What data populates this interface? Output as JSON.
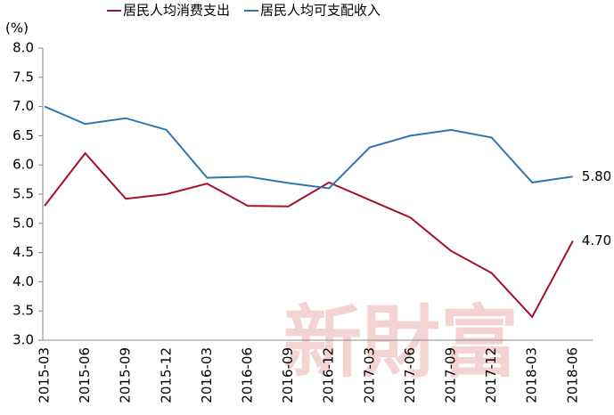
{
  "chart_data": {
    "type": "line",
    "unit_label": "(%)",
    "watermark": "新財富",
    "categories": [
      "2015-03",
      "2015-06",
      "2015-09",
      "2015-12",
      "2016-03",
      "2016-06",
      "2016-09",
      "2016-12",
      "2017-03",
      "2017-06",
      "2017-09",
      "2017-12",
      "2018-03",
      "2018-06"
    ],
    "series": [
      {
        "name": "居民人均消费支出",
        "color": "#a5112a",
        "values": [
          5.3,
          6.2,
          5.42,
          5.5,
          5.68,
          5.3,
          5.29,
          5.7,
          5.4,
          5.1,
          4.53,
          4.15,
          3.4,
          4.7
        ],
        "value_labels": [
          null,
          null,
          null,
          null,
          null,
          null,
          null,
          null,
          null,
          null,
          null,
          null,
          null,
          "4.70"
        ]
      },
      {
        "name": "居民人均可支配收入",
        "color": "#2e75b6",
        "values": [
          7.0,
          6.7,
          6.8,
          6.6,
          5.78,
          5.8,
          5.69,
          5.6,
          6.3,
          6.5,
          6.6,
          6.47,
          5.7,
          5.8
        ],
        "value_labels": [
          null,
          null,
          null,
          null,
          null,
          null,
          null,
          null,
          null,
          null,
          null,
          null,
          null,
          "5.80"
        ]
      }
    ],
    "ylim": [
      3.0,
      8.0
    ],
    "yticks": [
      {
        "value": 3.0,
        "label": "3.0"
      },
      {
        "value": 3.5,
        "label": "3.5"
      },
      {
        "value": 4.0,
        "label": "4.0"
      },
      {
        "value": 4.5,
        "label": "4.5"
      },
      {
        "value": 5.0,
        "label": "5.0"
      },
      {
        "value": 5.5,
        "label": "5.5"
      },
      {
        "value": 6.0,
        "label": "6.0"
      },
      {
        "value": 6.5,
        "label": "6.5"
      },
      {
        "value": 7.0,
        "label": "7.0"
      },
      {
        "value": 7.5,
        "label": "7.5"
      },
      {
        "value": 8.0,
        "label": "8.0"
      }
    ],
    "grid": false,
    "legend": "top"
  }
}
